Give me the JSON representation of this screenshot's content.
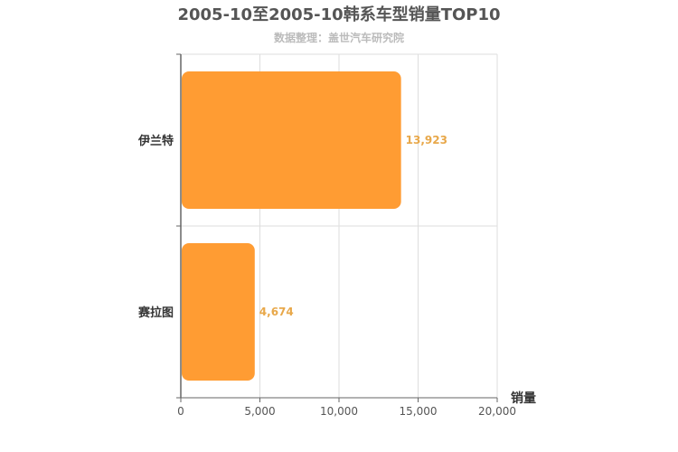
{
  "chart_data": {
    "type": "bar",
    "orientation": "horizontal",
    "title": "2005-10至2005-10韩系车型销量TOP10",
    "subtitle": "数据整理：盖世汽车研究院",
    "xlabel": "销量",
    "ylabel": "",
    "categories": [
      "伊兰特",
      "赛拉图"
    ],
    "values": [
      13923,
      4674
    ],
    "value_labels": [
      "13,923",
      "4,674"
    ],
    "xlim": [
      0,
      20000
    ],
    "xticks": [
      0,
      5000,
      10000,
      15000,
      20000
    ],
    "xtick_labels": [
      "0",
      "5,000",
      "10,000",
      "15,000",
      "20,000"
    ],
    "grid": true,
    "bar_color": "#ff9c33",
    "label_color": "#e8a84a"
  }
}
